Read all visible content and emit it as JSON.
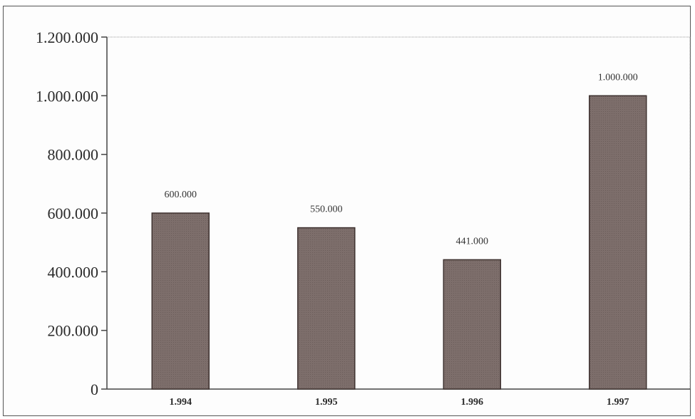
{
  "chart_data": {
    "type": "bar",
    "categories": [
      "1.994",
      "1.995",
      "1.996",
      "1.997"
    ],
    "values": [
      600000,
      550000,
      441000,
      1000000
    ],
    "data_labels": [
      "600.000",
      "550.000",
      "441.000",
      "1.000.000"
    ],
    "y_ticks": [
      0,
      200000,
      400000,
      600000,
      800000,
      1000000,
      1200000
    ],
    "y_tick_labels": [
      "0",
      "200.000",
      "400.000",
      "600.000",
      "800.000",
      "1.000.000",
      "1.200.000"
    ],
    "ylim": [
      0,
      1200000
    ],
    "title": "",
    "xlabel": "",
    "ylabel": "",
    "grid": false,
    "legend": "none",
    "colors": {
      "bar_fill": "#7d6e6b",
      "bar_edge": "#3e3230",
      "axis": "#444444"
    }
  }
}
